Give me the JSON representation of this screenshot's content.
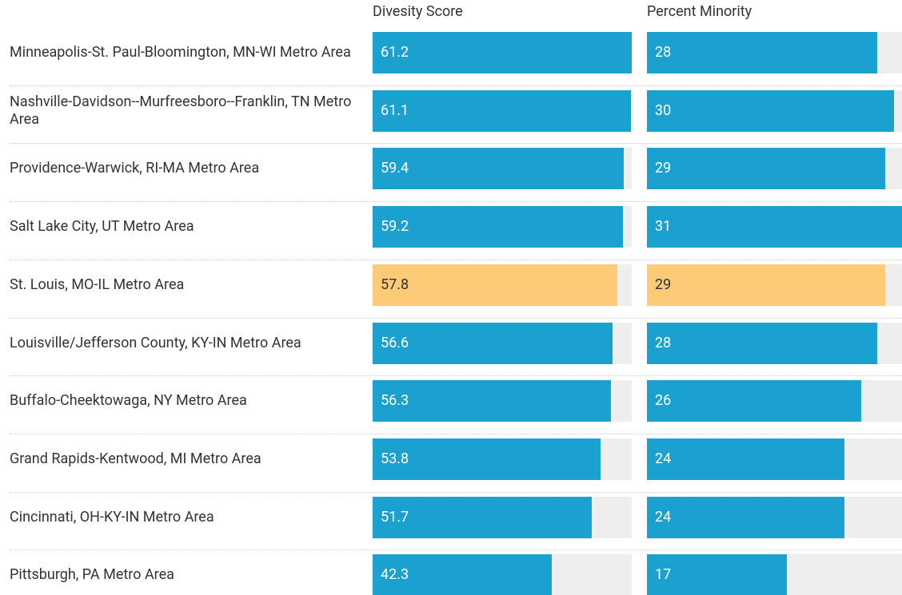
{
  "chart_data": {
    "type": "bar-table",
    "categories": [
      "Minneapolis-St. Paul-Bloomington, MN-WI Metro Area",
      "Nashville-Davidson--Murfreesboro--Franklin, TN Metro Area",
      "Providence-Warwick, RI-MA Metro Area",
      "Salt Lake City, UT Metro Area",
      "St. Louis, MO-IL Metro Area",
      "Louisville/Jefferson County, KY-IN Metro Area",
      "Buffalo-Cheektowaga, NY Metro Area",
      "Grand Rapids-Kentwood, MI Metro Area",
      "Cincinnati, OH-KY-IN Metro Area",
      "Pittsburgh, PA Metro Area"
    ],
    "series": [
      {
        "name": "Divesity Score",
        "values": [
          61.2,
          61.1,
          59.4,
          59.2,
          57.8,
          56.6,
          56.3,
          53.8,
          51.7,
          42.3
        ],
        "xlim": [
          0,
          61.2
        ]
      },
      {
        "name": "Percent Minority",
        "values": [
          28,
          30,
          29,
          31,
          29,
          28,
          26,
          24,
          24,
          17
        ],
        "xlim": [
          0,
          31
        ]
      }
    ],
    "bar_colors": [
      "#1ba1cf",
      "#1ba1cf",
      "#1ba1cf",
      "#1ba1cf",
      "#fdca78",
      "#1ba1cf",
      "#1ba1cf",
      "#1ba1cf",
      "#1ba1cf",
      "#1ba1cf"
    ],
    "track_color": "#eeeeee"
  }
}
